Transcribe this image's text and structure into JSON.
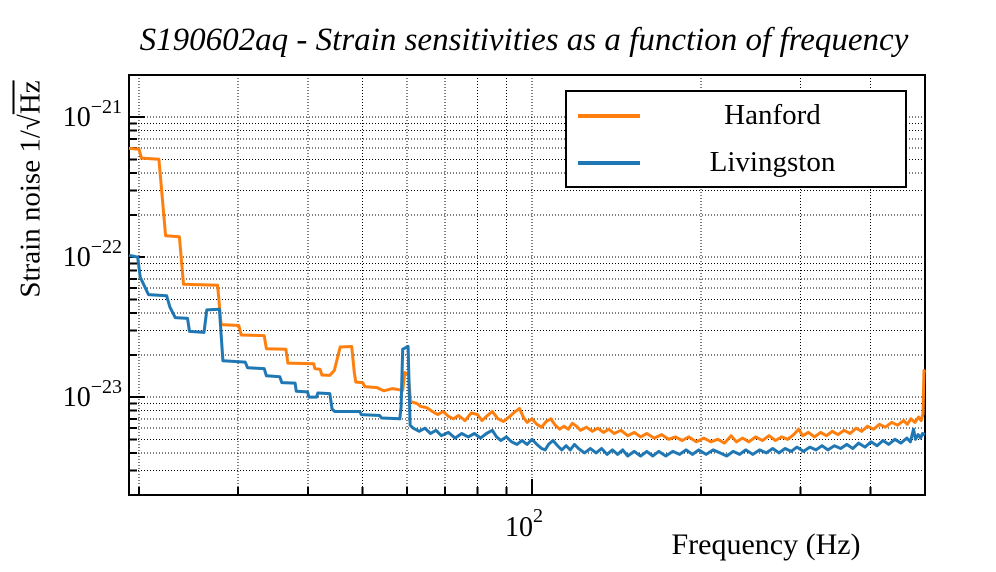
{
  "title": "S190602aq - Strain sensitivities as a function of frequency",
  "axes": {
    "xlabel": "Frequency (Hz)",
    "ylabel_prefix": "Strain noise 1/",
    "sqrt_symbol": "√",
    "ylabel_sqrt_arg": "Hz",
    "x_tick_label": {
      "base": "10",
      "exp": "2"
    },
    "y_tick_labels": [
      {
        "base": "10",
        "exp": "−21"
      },
      {
        "base": "10",
        "exp": "−22"
      },
      {
        "base": "10",
        "exp": "−23"
      }
    ]
  },
  "legend": {
    "entries": [
      {
        "label": "Hanford",
        "color": "#ff7f0e"
      },
      {
        "label": "Livingston",
        "color": "#1f77b4"
      }
    ]
  },
  "chart_data": {
    "type": "line",
    "title": "S190602aq - Strain sensitivities as a function of frequency",
    "xlabel": "Frequency (Hz)",
    "ylabel": "Strain noise 1/√Hz",
    "xscale": "log",
    "yscale": "log",
    "xlim": [
      19.2,
      500
    ],
    "ylim": [
      2e-24,
      2e-21
    ],
    "grid": "dotted black gridlines at every major and minor log tick",
    "legend_position": "top-right inside frame",
    "x_major_ticks": [
      100
    ],
    "x_minor_ticks": [
      20,
      30,
      40,
      50,
      60,
      70,
      80,
      90,
      200,
      300,
      400,
      500
    ],
    "y_major_ticks": [
      1e-21,
      1e-22,
      1e-23
    ],
    "y_minor_ticks": [
      2e-21,
      9e-22,
      8e-22,
      7e-22,
      6e-22,
      5e-22,
      4e-22,
      3e-22,
      2e-22,
      9e-23,
      8e-23,
      7e-23,
      6e-23,
      5e-23,
      4e-23,
      3e-23,
      2e-23,
      9e-24,
      8e-24,
      7e-24,
      6e-24,
      5e-24,
      4e-24,
      3e-24,
      2e-24
    ],
    "series": [
      {
        "name": "Hanford",
        "color": "#ff7f0e",
        "points": [
          [
            19.2,
            6e-22
          ],
          [
            20.0,
            5.9e-22
          ],
          [
            20.2,
            5.1e-22
          ],
          [
            21.7,
            5e-22
          ],
          [
            22.3,
            1.42e-22
          ],
          [
            23.6,
            1.4e-22
          ],
          [
            24.0,
            6.4e-23
          ],
          [
            27.6,
            6.3e-23
          ],
          [
            28.0,
            3.3e-23
          ],
          [
            30.1,
            3.25e-23
          ],
          [
            30.4,
            2.78e-23
          ],
          [
            33.4,
            2.75e-23
          ],
          [
            33.7,
            2.22e-23
          ],
          [
            36.5,
            2.2e-23
          ],
          [
            36.8,
            1.75e-23
          ],
          [
            40.9,
            1.73e-23
          ],
          [
            41.1,
            1.6e-23
          ],
          [
            42.0,
            1.58e-23
          ],
          [
            42.3,
            1.44e-23
          ],
          [
            43.7,
            1.43e-23
          ],
          [
            44.5,
            1.55e-23
          ],
          [
            45.6,
            2.28e-23
          ],
          [
            47.8,
            2.3e-23
          ],
          [
            48.3,
            1.5e-23
          ],
          [
            48.6,
            1.28e-23
          ],
          [
            50.0,
            1.27e-23
          ],
          [
            50.4,
            1.19e-23
          ],
          [
            53.0,
            1.17e-23
          ],
          [
            54.5,
            1.11e-23
          ],
          [
            56.5,
            1.15e-23
          ],
          [
            58.9,
            1.12e-23
          ],
          [
            59.4,
            1.5e-23
          ],
          [
            60.3,
            1.45e-23
          ],
          [
            60.8,
            9.3e-24
          ],
          [
            62.5,
            9e-24
          ],
          [
            63.3,
            8.6e-24
          ],
          [
            65.0,
            8.4e-24
          ],
          [
            66.5,
            7.9e-24
          ],
          [
            68.0,
            7.5e-24
          ],
          [
            69.5,
            7.9e-24
          ],
          [
            71.0,
            7.3e-24
          ],
          [
            72.5,
            7e-24
          ],
          [
            74.0,
            7.4e-24
          ],
          [
            76.0,
            6.8e-24
          ],
          [
            78.0,
            7.7e-24
          ],
          [
            80.0,
            7.5e-24
          ],
          [
            81.5,
            6.8e-24
          ],
          [
            83.0,
            7.3e-24
          ],
          [
            85.0,
            7.9e-24
          ],
          [
            87.0,
            7e-24
          ],
          [
            89.0,
            6.7e-24
          ],
          [
            91.0,
            7.2e-24
          ],
          [
            93.0,
            7.8e-24
          ],
          [
            95.0,
            8.3e-24
          ],
          [
            96.5,
            7.2e-24
          ],
          [
            98.0,
            6.6e-24
          ],
          [
            100,
            7e-24
          ],
          [
            102,
            6.4e-24
          ],
          [
            104,
            6.1e-24
          ],
          [
            106,
            6.7e-24
          ],
          [
            108,
            7e-24
          ],
          [
            110,
            6.3e-24
          ],
          [
            112,
            5.9e-24
          ],
          [
            114,
            6.2e-24
          ],
          [
            116,
            5.9e-24
          ],
          [
            118,
            6.5e-24
          ],
          [
            120,
            6.2e-24
          ],
          [
            122,
            5.8e-24
          ],
          [
            125,
            6.1e-24
          ],
          [
            128,
            5.7e-24
          ],
          [
            131,
            6e-24
          ],
          [
            134,
            5.6e-24
          ],
          [
            137,
            5.9e-24
          ],
          [
            140,
            5.5e-24
          ],
          [
            144,
            5.8e-24
          ],
          [
            148,
            5.3e-24
          ],
          [
            152,
            5.6e-24
          ],
          [
            156,
            5.2e-24
          ],
          [
            160,
            5.5e-24
          ],
          [
            165,
            5.1e-24
          ],
          [
            170,
            5.4e-24
          ],
          [
            175,
            5e-24
          ],
          [
            180,
            5.2e-24
          ],
          [
            185,
            4.9e-24
          ],
          [
            190,
            5.2e-24
          ],
          [
            196,
            4.8e-24
          ],
          [
            202,
            5.1e-24
          ],
          [
            208,
            4.8e-24
          ],
          [
            214,
            5e-24
          ],
          [
            220,
            4.7e-24
          ],
          [
            226,
            5.3e-24
          ],
          [
            231,
            4.8e-24
          ],
          [
            237,
            5.1e-24
          ],
          [
            243,
            4.8e-24
          ],
          [
            250,
            5.2e-24
          ],
          [
            257,
            4.9e-24
          ],
          [
            264,
            5.3e-24
          ],
          [
            271,
            4.9e-24
          ],
          [
            278,
            5.2e-24
          ],
          [
            285,
            5e-24
          ],
          [
            292,
            5.4e-24
          ],
          [
            298,
            5.9e-24
          ],
          [
            303,
            5.3e-24
          ],
          [
            310,
            5.6e-24
          ],
          [
            318,
            5.2e-24
          ],
          [
            326,
            5.6e-24
          ],
          [
            334,
            5.3e-24
          ],
          [
            342,
            5.7e-24
          ],
          [
            350,
            5.4e-24
          ],
          [
            359,
            5.8e-24
          ],
          [
            368,
            5.5e-24
          ],
          [
            377,
            6e-24
          ],
          [
            386,
            5.7e-24
          ],
          [
            395,
            6.2e-24
          ],
          [
            405,
            5.9e-24
          ],
          [
            415,
            6.4e-24
          ],
          [
            425,
            6.1e-24
          ],
          [
            436,
            6.6e-24
          ],
          [
            447,
            6.3e-24
          ],
          [
            458,
            6.8e-24
          ],
          [
            465,
            6.4e-24
          ],
          [
            472,
            7e-24
          ],
          [
            480,
            6.6e-24
          ],
          [
            487,
            7.2e-24
          ],
          [
            492,
            6.8e-24
          ],
          [
            496,
            7.6e-24
          ],
          [
            498,
            1.55e-23
          ],
          [
            500,
            1.5e-23
          ]
        ]
      },
      {
        "name": "Livingston",
        "color": "#1f77b4",
        "points": [
          [
            19.2,
            1.03e-22
          ],
          [
            19.9,
            1e-22
          ],
          [
            20.1,
            7.2e-23
          ],
          [
            20.8,
            5.4e-23
          ],
          [
            22.4,
            5.3e-23
          ],
          [
            22.7,
            4.4e-23
          ],
          [
            23.2,
            3.7e-23
          ],
          [
            24.4,
            3.65e-23
          ],
          [
            24.6,
            2.95e-23
          ],
          [
            26.1,
            2.9e-23
          ],
          [
            26.4,
            4.2e-23
          ],
          [
            27.8,
            4.25e-23
          ],
          [
            28.2,
            1.82e-23
          ],
          [
            30.9,
            1.78e-23
          ],
          [
            31.2,
            1.62e-23
          ],
          [
            33.4,
            1.6e-23
          ],
          [
            33.7,
            1.42e-23
          ],
          [
            35.6,
            1.4e-23
          ],
          [
            35.9,
            1.27e-23
          ],
          [
            37.9,
            1.26e-23
          ],
          [
            38.1,
            1.1e-23
          ],
          [
            39.9,
            1.09e-23
          ],
          [
            40.1,
            1e-23
          ],
          [
            41.4,
            1e-23
          ],
          [
            41.6,
            1.07e-23
          ],
          [
            43.7,
            1.06e-23
          ],
          [
            44.1,
            8.2e-24
          ],
          [
            44.6,
            7.9e-24
          ],
          [
            49.4,
            7.9e-24
          ],
          [
            49.7,
            7.5e-24
          ],
          [
            53.6,
            7.4e-24
          ],
          [
            54.0,
            7.1e-24
          ],
          [
            58.2,
            7e-24
          ],
          [
            58.5,
            8.5e-24
          ],
          [
            58.9,
            2.2e-23
          ],
          [
            60.2,
            2.3e-23
          ],
          [
            60.7,
            6.3e-24
          ],
          [
            61.5,
            6e-24
          ],
          [
            63.0,
            5.7e-24
          ],
          [
            64.5,
            6e-24
          ],
          [
            66.0,
            5.5e-24
          ],
          [
            67.5,
            5.8e-24
          ],
          [
            69.0,
            5.3e-24
          ],
          [
            71.0,
            5.6e-24
          ],
          [
            73.0,
            5.1e-24
          ],
          [
            75.0,
            5.5e-24
          ],
          [
            77.0,
            5.2e-24
          ],
          [
            79.0,
            5.5e-24
          ],
          [
            81.0,
            5.1e-24
          ],
          [
            83.0,
            5.5e-24
          ],
          [
            85.0,
            5.8e-24
          ],
          [
            86.5,
            5.2e-24
          ],
          [
            88.0,
            4.9e-24
          ],
          [
            90.0,
            5.2e-24
          ],
          [
            92.0,
            4.8e-24
          ],
          [
            94.0,
            4.6e-24
          ],
          [
            96.0,
            4.9e-24
          ],
          [
            98.0,
            4.6e-24
          ],
          [
            100,
            5e-24
          ],
          [
            102,
            4.6e-24
          ],
          [
            104,
            4.3e-24
          ],
          [
            105.5,
            4.2e-24
          ],
          [
            107,
            4.6e-24
          ],
          [
            109,
            4.9e-24
          ],
          [
            111,
            4.5e-24
          ],
          [
            113,
            4.2e-24
          ],
          [
            115,
            4.5e-24
          ],
          [
            117,
            4.2e-24
          ],
          [
            119,
            4.6e-24
          ],
          [
            121,
            4.3e-24
          ],
          [
            124,
            4e-24
          ],
          [
            127,
            4.3e-24
          ],
          [
            130,
            4e-24
          ],
          [
            133,
            4.3e-24
          ],
          [
            136,
            3.9e-24
          ],
          [
            139,
            4.2e-24
          ],
          [
            142,
            3.9e-24
          ],
          [
            145,
            4.2e-24
          ],
          [
            148,
            3.8e-24
          ],
          [
            152,
            4.1e-24
          ],
          [
            156,
            3.8e-24
          ],
          [
            160,
            4.1e-24
          ],
          [
            164,
            3.8e-24
          ],
          [
            168,
            4.1e-24
          ],
          [
            173,
            3.8e-24
          ],
          [
            178,
            4.1e-24
          ],
          [
            183,
            3.9e-24
          ],
          [
            188,
            4.2e-24
          ],
          [
            193,
            3.9e-24
          ],
          [
            198,
            4.2e-24
          ],
          [
            204,
            3.9e-24
          ],
          [
            210,
            4.2e-24
          ],
          [
            216,
            4e-24
          ],
          [
            222,
            3.8e-24
          ],
          [
            228,
            4.1e-24
          ],
          [
            234,
            3.9e-24
          ],
          [
            240,
            4.2e-24
          ],
          [
            247,
            3.9e-24
          ],
          [
            254,
            4.2e-24
          ],
          [
            261,
            4e-24
          ],
          [
            268,
            4.3e-24
          ],
          [
            275,
            4e-24
          ],
          [
            282,
            4.3e-24
          ],
          [
            289,
            4.1e-24
          ],
          [
            296,
            4.4e-24
          ],
          [
            304,
            4.1e-24
          ],
          [
            312,
            4.4e-24
          ],
          [
            320,
            4.2e-24
          ],
          [
            328,
            4.5e-24
          ],
          [
            336,
            4.2e-24
          ],
          [
            345,
            4.5e-24
          ],
          [
            354,
            4.3e-24
          ],
          [
            363,
            4.6e-24
          ],
          [
            372,
            4.3e-24
          ],
          [
            381,
            4.7e-24
          ],
          [
            391,
            4.4e-24
          ],
          [
            401,
            4.8e-24
          ],
          [
            411,
            4.5e-24
          ],
          [
            421,
            4.9e-24
          ],
          [
            431,
            4.6e-24
          ],
          [
            442,
            5e-24
          ],
          [
            453,
            4.7e-24
          ],
          [
            464,
            5.1e-24
          ],
          [
            471,
            4.8e-24
          ],
          [
            477,
            5.9e-24
          ],
          [
            481,
            5e-24
          ],
          [
            486,
            5.4e-24
          ],
          [
            491,
            5.1e-24
          ],
          [
            495,
            5.5e-24
          ],
          [
            500,
            5.4e-24
          ]
        ]
      }
    ]
  }
}
